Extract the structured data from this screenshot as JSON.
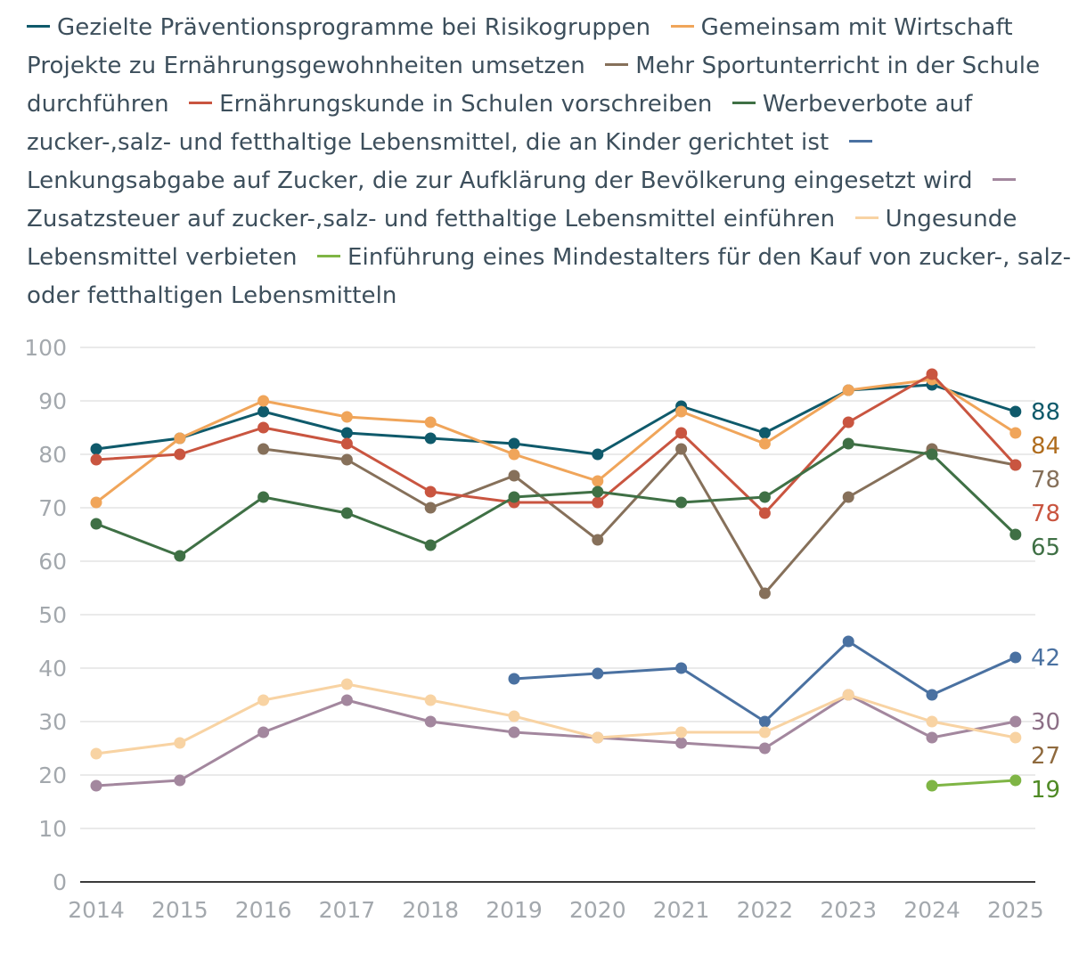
{
  "chart_data": {
    "type": "line",
    "title": "",
    "xlabel": "",
    "ylabel": "",
    "ylim": [
      0,
      100
    ],
    "yticks": [
      "0",
      "10",
      "20",
      "30",
      "40",
      "50",
      "60",
      "70",
      "80",
      "90",
      "100"
    ],
    "categories": [
      "2014",
      "2015",
      "2016",
      "2017",
      "2018",
      "2019",
      "2020",
      "2021",
      "2022",
      "2023",
      "2024",
      "2025"
    ],
    "series": [
      {
        "name": "Gezielte Präventionsprogramme bei Risikogruppen",
        "color": "#0f5a6b",
        "values": [
          81,
          83,
          88,
          84,
          83,
          82,
          80,
          89,
          84,
          92,
          93,
          88
        ],
        "end_label": "88",
        "label_color": "#0f5a6b"
      },
      {
        "name": "Gemeinsam mit Wirtschaft Projekte zu Ernährungsgewohnheiten umsetzen",
        "color": "#f0a55a",
        "values": [
          71,
          83,
          90,
          87,
          86,
          80,
          75,
          88,
          82,
          92,
          94,
          84
        ],
        "end_label": "84",
        "label_color": "#b06d1e"
      },
      {
        "name": "Mehr Sportunterricht in der Schule durchführen",
        "color": "#86705a",
        "values": [
          null,
          null,
          81,
          79,
          70,
          76,
          64,
          81,
          54,
          72,
          81,
          78
        ],
        "end_label": "78",
        "label_color": "#86705a"
      },
      {
        "name": "Ernährungskunde in Schulen vorschreiben",
        "color": "#c95540",
        "values": [
          79,
          80,
          85,
          82,
          73,
          71,
          71,
          84,
          69,
          86,
          95,
          78
        ],
        "end_label": "78",
        "label_color": "#c95540"
      },
      {
        "name": "Werbeverbote auf zucker-,salz- und fetthaltige Lebensmittel, die an Kinder gerichtet ist",
        "color": "#3f7045",
        "values": [
          67,
          61,
          72,
          69,
          63,
          72,
          73,
          71,
          72,
          82,
          80,
          65
        ],
        "end_label": "65",
        "label_color": "#3f7045"
      },
      {
        "name": "Lenkungsabgabe auf Zucker, die zur Aufklärung der Bevölkerung eingesetzt wird",
        "color": "#4a71a1",
        "values": [
          null,
          null,
          null,
          null,
          null,
          38,
          39,
          40,
          30,
          45,
          35,
          42
        ],
        "end_label": "42",
        "label_color": "#4a71a1"
      },
      {
        "name": "Zusatzsteuer auf zucker-,salz- und fetthaltige Lebensmittel einführen",
        "color": "#a3879e",
        "values": [
          18,
          19,
          28,
          34,
          30,
          28,
          27,
          26,
          25,
          35,
          27,
          30
        ],
        "end_label": "30",
        "label_color": "#8c6f86"
      },
      {
        "name": "Ungesunde Lebensmittel verbieten",
        "color": "#f8d3a3",
        "values": [
          24,
          26,
          34,
          37,
          34,
          31,
          27,
          28,
          28,
          35,
          30,
          27
        ],
        "end_label": "27",
        "label_color": "#8f6a3e"
      },
      {
        "name": "Einführung eines Mindestalters für den Kauf von zucker-, salz- oder fetthaltigen Lebensmitteln",
        "color": "#7fb545",
        "values": [
          null,
          null,
          null,
          null,
          null,
          null,
          null,
          null,
          null,
          null,
          18,
          19
        ],
        "end_label": "19",
        "label_color": "#4f8a25"
      }
    ]
  }
}
